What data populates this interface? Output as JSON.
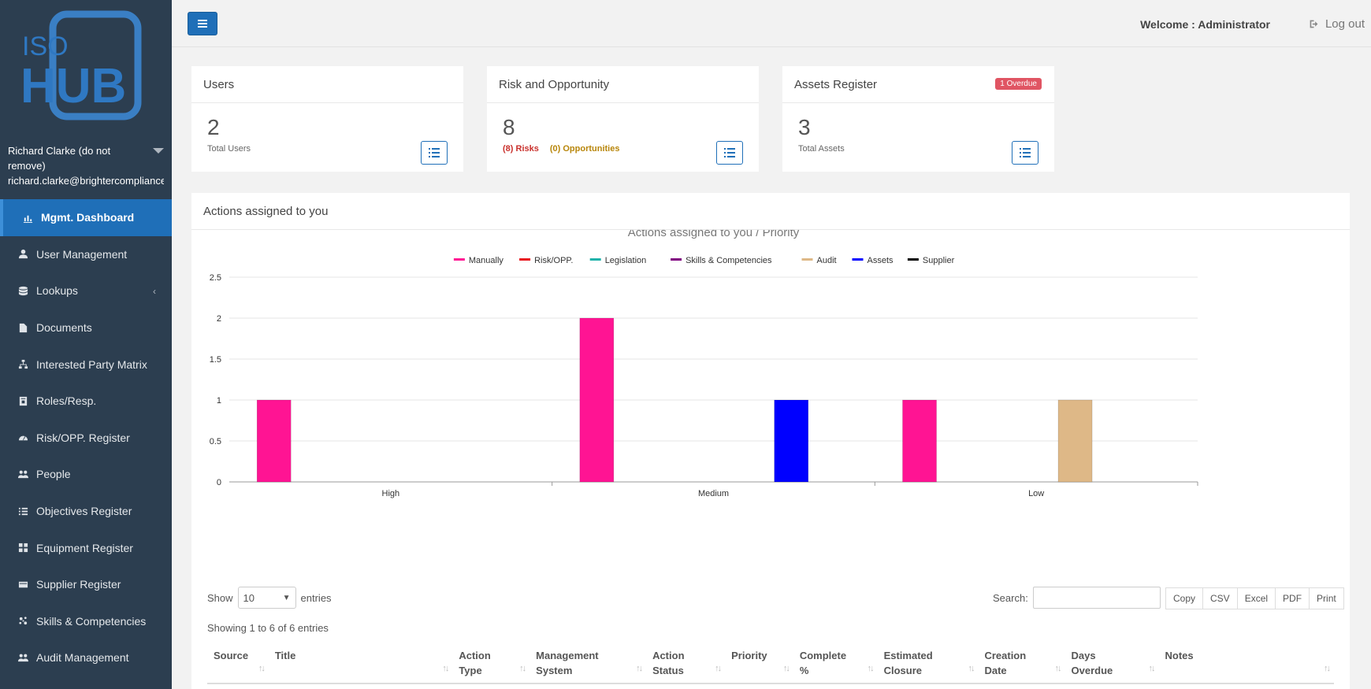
{
  "sidebar": {
    "logo_line1": "ISO",
    "logo_line2": "HUB",
    "user_name": "Richard Clarke (do not remove)",
    "user_email": "richard.clarke@brightercompliance.com",
    "items": [
      {
        "label": "Mgmt. Dashboard",
        "icon": "bar-chart-icon",
        "active": true
      },
      {
        "label": "User Management",
        "icon": "user-icon"
      },
      {
        "label": "Lookups",
        "icon": "database-icon",
        "has_arrow": true
      },
      {
        "label": "Documents",
        "icon": "file-icon"
      },
      {
        "label": "Interested Party Matrix",
        "icon": "sitemap-icon"
      },
      {
        "label": "Roles/Resp.",
        "icon": "id-badge-icon"
      },
      {
        "label": "Risk/OPP. Register",
        "icon": "gauge-icon"
      },
      {
        "label": "People",
        "icon": "users-icon"
      },
      {
        "label": "Objectives Register",
        "icon": "list-icon"
      },
      {
        "label": "Equipment Register",
        "icon": "grid-icon"
      },
      {
        "label": "Supplier Register",
        "icon": "card-icon"
      },
      {
        "label": "Skills & Competencies",
        "icon": "puzzle-icon"
      },
      {
        "label": "Audit Management",
        "icon": "users-icon"
      }
    ],
    "arrow_glyph": "‹"
  },
  "topbar": {
    "welcome": "Welcome : Administrator",
    "logout": "Log out"
  },
  "cards": {
    "users": {
      "title": "Users",
      "value": "2",
      "sub": "Total Users"
    },
    "risk": {
      "title": "Risk and Opportunity",
      "value": "8",
      "risks": "(8) Risks",
      "opportunities": "(0) Opportunities"
    },
    "assets": {
      "title": "Assets Register",
      "value": "3",
      "sub": "Total Assets",
      "badge": "1 Overdue"
    }
  },
  "actions": {
    "title": "Actions assigned to you",
    "show_label": "Show",
    "entries_label": "entries",
    "page_size": "10",
    "search_label": "Search:",
    "export_buttons": [
      "Copy",
      "CSV",
      "Excel",
      "PDF",
      "Print"
    ],
    "info": "Showing 1 to 6 of 6 entries",
    "columns": [
      {
        "label": "Source",
        "width": 70
      },
      {
        "label": "Title",
        "width": 210
      },
      {
        "label": "Action Type",
        "width": 88
      },
      {
        "label": "Management System",
        "width": 133
      },
      {
        "label": "Action Status",
        "width": 90
      },
      {
        "label": "Priority",
        "width": 78
      },
      {
        "label": "Complete %",
        "width": 96
      },
      {
        "label": "Estimated Closure",
        "width": 115
      },
      {
        "label": "Creation Date",
        "width": 99
      },
      {
        "label": "Days Overdue",
        "width": 107
      },
      {
        "label": "Notes",
        "width": 200
      }
    ]
  },
  "chart_data": {
    "type": "bar",
    "title": "Actions assigned to you / Priority",
    "categories": [
      "High",
      "Medium",
      "Low"
    ],
    "ylim": [
      0,
      2.5
    ],
    "yticks": [
      "0",
      "0.5",
      "1",
      "1.5",
      "2",
      "2.5"
    ],
    "legend_position": "top",
    "series": [
      {
        "name": "Manually",
        "color": "#ff1493",
        "values": [
          1,
          2,
          1
        ]
      },
      {
        "name": "Risk/OPP.",
        "color": "#e8141c",
        "values": [
          0,
          0,
          0
        ]
      },
      {
        "name": "Legislation",
        "color": "#20b2aa",
        "values": [
          0,
          0,
          0
        ]
      },
      {
        "name": "Skills & Competencies",
        "color": "#800080",
        "values": [
          0,
          0,
          0
        ]
      },
      {
        "name": "Audit",
        "color": "#deb887",
        "values": [
          0,
          0,
          1
        ]
      },
      {
        "name": "Assets",
        "color": "#0000ff",
        "values": [
          0,
          1,
          0
        ]
      },
      {
        "name": "Supplier",
        "color": "#000000",
        "values": [
          0,
          0,
          0
        ]
      }
    ]
  }
}
